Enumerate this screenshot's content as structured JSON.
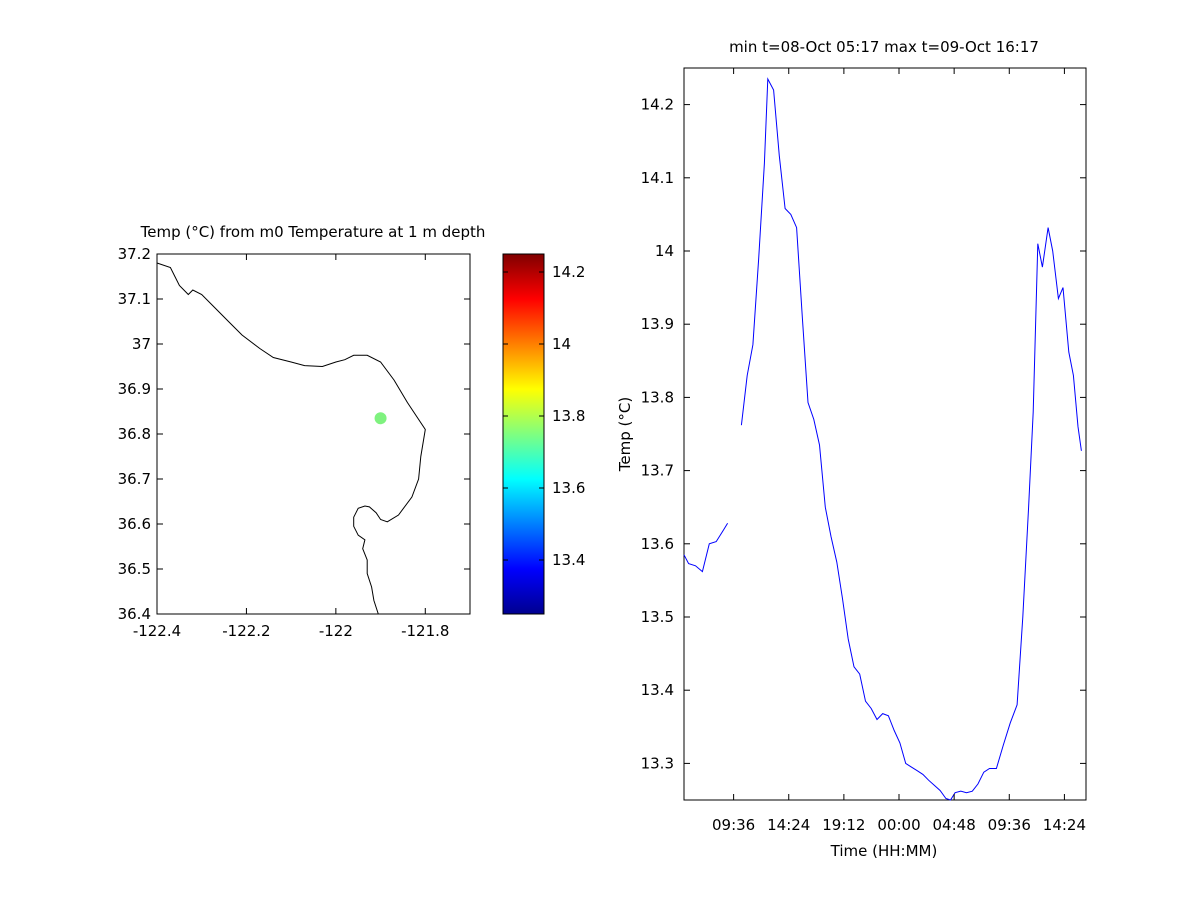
{
  "chart_data": [
    {
      "type": "map",
      "title": "Temp (°C) from m0 Temperature at 1 m depth",
      "xlabel": "",
      "ylabel": "",
      "xlim": [
        -122.4,
        -121.7
      ],
      "ylim": [
        36.4,
        37.2
      ],
      "x_ticks": [
        "-122.4",
        "-122.2",
        "-122",
        "-121.8"
      ],
      "x_tick_values": [
        -122.4,
        -122.2,
        -122.0,
        -121.8
      ],
      "y_ticks": [
        "36.4",
        "36.5",
        "36.6",
        "36.7",
        "36.8",
        "36.9",
        "37",
        "37.1",
        "37.2"
      ],
      "y_tick_values": [
        36.4,
        36.5,
        36.6,
        36.7,
        36.8,
        36.9,
        37.0,
        37.1,
        37.2
      ],
      "grid": false,
      "coastline": [
        [
          -122.4,
          37.18
        ],
        [
          -122.37,
          37.17
        ],
        [
          -122.36,
          37.15
        ],
        [
          -122.35,
          37.13
        ],
        [
          -122.33,
          37.11
        ],
        [
          -122.32,
          37.12
        ],
        [
          -122.3,
          37.11
        ],
        [
          -122.27,
          37.08
        ],
        [
          -122.24,
          37.05
        ],
        [
          -122.21,
          37.02
        ],
        [
          -122.17,
          36.99
        ],
        [
          -122.14,
          36.97
        ],
        [
          -122.1,
          36.96
        ],
        [
          -122.07,
          36.952
        ],
        [
          -122.03,
          36.95
        ],
        [
          -122.0,
          36.96
        ],
        [
          -121.98,
          36.965
        ],
        [
          -121.96,
          36.975
        ],
        [
          -121.93,
          36.975
        ],
        [
          -121.9,
          36.96
        ],
        [
          -121.87,
          36.92
        ],
        [
          -121.84,
          36.87
        ],
        [
          -121.8,
          36.81
        ],
        [
          -121.81,
          36.75
        ],
        [
          -121.815,
          36.7
        ],
        [
          -121.83,
          36.66
        ],
        [
          -121.86,
          36.62
        ],
        [
          -121.885,
          36.605
        ],
        [
          -121.9,
          36.61
        ],
        [
          -121.91,
          36.625
        ],
        [
          -121.925,
          36.638
        ],
        [
          -121.935,
          36.64
        ],
        [
          -121.95,
          36.635
        ],
        [
          -121.96,
          36.615
        ],
        [
          -121.96,
          36.595
        ],
        [
          -121.95,
          36.575
        ],
        [
          -121.935,
          36.565
        ],
        [
          -121.94,
          36.545
        ],
        [
          -121.93,
          36.52
        ],
        [
          -121.93,
          36.49
        ],
        [
          -121.92,
          36.46
        ],
        [
          -121.915,
          36.43
        ],
        [
          -121.905,
          36.4
        ]
      ],
      "station": {
        "lon": -121.9,
        "lat": 36.835,
        "value": 13.72,
        "color": "#7ff27f"
      },
      "colorbar": {
        "colormap": "jet",
        "range": [
          13.25,
          14.25
        ],
        "ticks": [
          "13.4",
          "13.6",
          "13.8",
          "14",
          "14.2"
        ],
        "tick_values": [
          13.4,
          13.6,
          13.8,
          14.0,
          14.2
        ]
      }
    },
    {
      "type": "line",
      "title": "min t=08-Oct 05:17 max t=09-Oct 16:17",
      "xlabel": "Time (HH:MM)",
      "ylabel": "Temp (°C)",
      "x_unit": "hours from 08-Oct 05:17",
      "xlim": [
        0,
        35
      ],
      "ylim": [
        13.25,
        14.25
      ],
      "x_ticks": [
        "09:36",
        "14:24",
        "19:12",
        "00:00",
        "04:48",
        "09:36",
        "14:24"
      ],
      "x_tick_values": [
        4.32,
        9.12,
        13.92,
        18.72,
        23.52,
        28.32,
        33.12
      ],
      "y_ticks": [
        "13.3",
        "13.4",
        "13.5",
        "13.6",
        "13.7",
        "13.8",
        "13.9",
        "14",
        "14.1",
        "14.2"
      ],
      "y_tick_values": [
        13.3,
        13.4,
        13.5,
        13.6,
        13.7,
        13.8,
        13.9,
        14.0,
        14.1,
        14.2
      ],
      "grid": false,
      "series": [
        {
          "name": "",
          "color": "#0000ff",
          "segments": [
            [
              [
                0,
                13.585
              ],
              [
                0.4,
                13.573
              ],
              [
                1,
                13.57
              ],
              [
                1.6,
                13.562
              ],
              [
                2.2,
                13.6
              ],
              [
                2.8,
                13.603
              ],
              [
                3.4,
                13.618
              ],
              [
                3.8,
                13.628
              ]
            ],
            [
              [
                5.0,
                13.762
              ],
              [
                5.5,
                13.83
              ],
              [
                6.0,
                13.872
              ],
              [
                6.5,
                13.99
              ],
              [
                7.0,
                14.12
              ],
              [
                7.3,
                14.235
              ],
              [
                7.8,
                14.22
              ],
              [
                8.3,
                14.13
              ],
              [
                8.8,
                14.058
              ],
              [
                9.3,
                14.05
              ],
              [
                9.8,
                14.032
              ],
              [
                10.3,
                13.91
              ],
              [
                10.8,
                13.793
              ],
              [
                11.3,
                13.77
              ],
              [
                11.8,
                13.735
              ],
              [
                12.3,
                13.65
              ],
              [
                12.8,
                13.61
              ],
              [
                13.3,
                13.575
              ],
              [
                13.8,
                13.525
              ],
              [
                14.3,
                13.47
              ],
              [
                14.8,
                13.432
              ],
              [
                15.3,
                13.422
              ],
              [
                15.8,
                13.385
              ],
              [
                16.3,
                13.375
              ],
              [
                16.8,
                13.36
              ],
              [
                17.3,
                13.368
              ],
              [
                17.8,
                13.365
              ],
              [
                18.3,
                13.345
              ],
              [
                18.8,
                13.328
              ],
              [
                19.3,
                13.3
              ],
              [
                19.8,
                13.295
              ],
              [
                20.3,
                13.29
              ],
              [
                20.8,
                13.285
              ],
              [
                21.3,
                13.277
              ],
              [
                21.8,
                13.27
              ],
              [
                22.3,
                13.263
              ],
              [
                22.8,
                13.252
              ],
              [
                23.2,
                13.25
              ],
              [
                23.6,
                13.26
              ],
              [
                24.1,
                13.262
              ],
              [
                24.6,
                13.26
              ],
              [
                25.1,
                13.262
              ],
              [
                25.6,
                13.272
              ],
              [
                26.1,
                13.288
              ],
              [
                26.6,
                13.293
              ],
              [
                27.2,
                13.293
              ],
              [
                27.8,
                13.325
              ],
              [
                28.4,
                13.355
              ],
              [
                29.0,
                13.38
              ],
              [
                29.5,
                13.5
              ],
              [
                30.0,
                13.65
              ],
              [
                30.4,
                13.78
              ],
              [
                30.8,
                14.01
              ],
              [
                31.2,
                13.978
              ],
              [
                31.7,
                14.032
              ],
              [
                32.1,
                14.0
              ],
              [
                32.6,
                13.935
              ],
              [
                33.0,
                13.95
              ],
              [
                33.5,
                13.862
              ],
              [
                33.9,
                13.83
              ],
              [
                34.3,
                13.76
              ],
              [
                34.6,
                13.727
              ]
            ]
          ]
        }
      ]
    }
  ]
}
